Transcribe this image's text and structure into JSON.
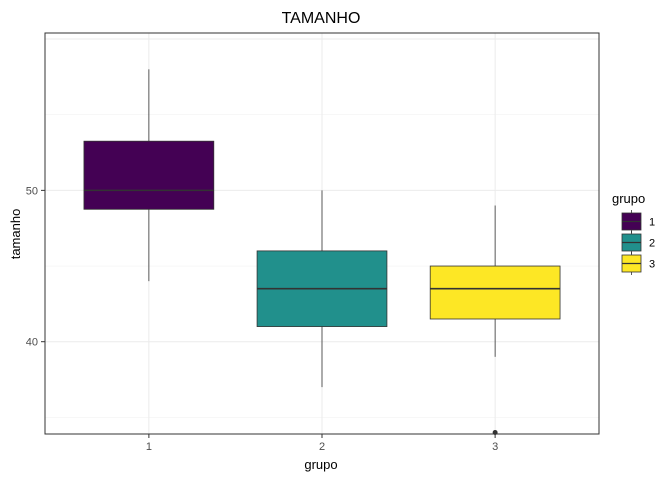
{
  "chart_data": {
    "type": "box",
    "title": "TAMANHO",
    "xlabel": "grupo",
    "ylabel": "tamanho",
    "categories": [
      "1",
      "2",
      "3"
    ],
    "ylim": [
      33.9,
      60.4
    ],
    "yticks": [
      40,
      50
    ],
    "grid": true,
    "legend": {
      "title": "grupo",
      "position": "right",
      "entries": [
        "1",
        "2",
        "3"
      ]
    },
    "colors": [
      "#440154",
      "#21908c",
      "#fde725"
    ],
    "boxes": [
      {
        "category": "1",
        "whisker_low": 44,
        "q1": 48.75,
        "median": 50,
        "q3": 53.25,
        "whisker_high": 58,
        "outliers": []
      },
      {
        "category": "2",
        "whisker_low": 37,
        "q1": 41,
        "median": 43.5,
        "q3": 46,
        "whisker_high": 50,
        "outliers": []
      },
      {
        "category": "3",
        "whisker_low": 39,
        "q1": 41.5,
        "median": 43.5,
        "q3": 45,
        "whisker_high": 49,
        "outliers": [
          34
        ]
      }
    ]
  }
}
